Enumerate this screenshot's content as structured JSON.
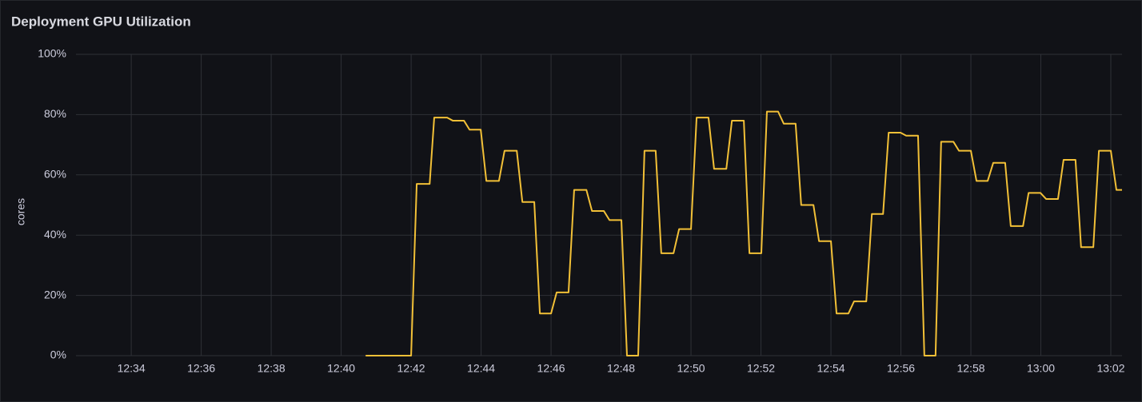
{
  "chart_data": {
    "type": "line",
    "title": "Deployment GPU Utilization",
    "y_label": "cores",
    "color": "#f2c037",
    "grid": true,
    "x": [
      760.7,
      762.0,
      762.16,
      762.53,
      762.66,
      763.03,
      763.19,
      763.51,
      763.67,
      763.99,
      764.15,
      764.51,
      764.67,
      765.02,
      765.18,
      765.52,
      765.68,
      766.0,
      766.16,
      766.5,
      766.66,
      767.01,
      767.17,
      767.51,
      767.67,
      768.01,
      768.17,
      768.49,
      768.67,
      768.99,
      769.15,
      769.5,
      769.66,
      770.0,
      770.16,
      770.5,
      770.66,
      771.01,
      771.17,
      771.51,
      771.67,
      772.01,
      772.17,
      772.49,
      772.65,
      772.99,
      773.15,
      773.5,
      773.66,
      774.0,
      774.16,
      774.5,
      774.66,
      775.01,
      775.17,
      775.49,
      775.65,
      775.99,
      776.15,
      776.49,
      776.67,
      776.99,
      777.15,
      777.5,
      777.66,
      778.0,
      778.16,
      778.48,
      778.64,
      778.98,
      779.14,
      779.49,
      779.65,
      779.99,
      780.15,
      780.49,
      780.65,
      780.99,
      781.15,
      781.5,
      781.66,
      782.0,
      782.16,
      782.32
    ],
    "values": [
      0,
      0,
      57,
      57,
      79,
      79,
      78,
      78,
      75,
      75,
      58,
      58,
      68,
      68,
      51,
      51,
      14,
      14,
      21,
      21,
      55,
      55,
      48,
      48,
      45,
      45,
      0,
      0,
      68,
      68,
      34,
      34,
      42,
      42,
      79,
      79,
      62,
      62,
      78,
      78,
      34,
      34,
      81,
      81,
      77,
      77,
      50,
      50,
      38,
      38,
      14,
      14,
      18,
      18,
      47,
      47,
      74,
      74,
      73,
      73,
      0,
      0,
      71,
      71,
      68,
      68,
      58,
      58,
      64,
      64,
      43,
      43,
      54,
      54,
      52,
      52,
      65,
      65,
      36,
      36,
      68,
      68,
      55,
      55
    ],
    "xlim": [
      752.42,
      782.32
    ],
    "xticks": [
      {
        "value": 754,
        "label": "12:34"
      },
      {
        "value": 756,
        "label": "12:36"
      },
      {
        "value": 758,
        "label": "12:38"
      },
      {
        "value": 760,
        "label": "12:40"
      },
      {
        "value": 762,
        "label": "12:42"
      },
      {
        "value": 764,
        "label": "12:44"
      },
      {
        "value": 766,
        "label": "12:46"
      },
      {
        "value": 768,
        "label": "12:48"
      },
      {
        "value": 770,
        "label": "12:50"
      },
      {
        "value": 772,
        "label": "12:52"
      },
      {
        "value": 774,
        "label": "12:54"
      },
      {
        "value": 776,
        "label": "12:56"
      },
      {
        "value": 778,
        "label": "12:58"
      },
      {
        "value": 780,
        "label": "13:00"
      },
      {
        "value": 782,
        "label": "13:02"
      }
    ],
    "ylim": [
      0,
      100
    ],
    "yticks": [
      {
        "value": 0,
        "label": "0%"
      },
      {
        "value": 20,
        "label": "20%"
      },
      {
        "value": 40,
        "label": "40%"
      },
      {
        "value": 60,
        "label": "60%"
      },
      {
        "value": 80,
        "label": "80%"
      },
      {
        "value": 100,
        "label": "100%"
      }
    ]
  }
}
